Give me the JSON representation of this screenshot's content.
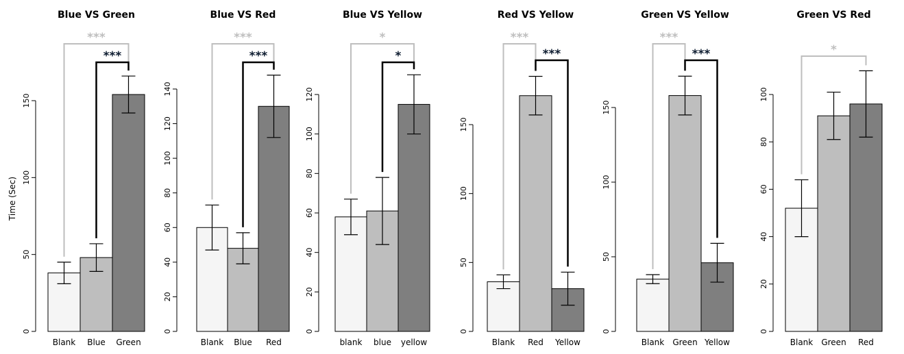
{
  "colors": {
    "bar_light": "#f5f5f5",
    "bar_mid": "#bebebe",
    "bar_dark": "#7f7f7f",
    "sig_black": "#000000",
    "sig_gray": "#bebebe",
    "sig_star_dark": "#0b1a2e"
  },
  "chart_data": [
    {
      "type": "bar",
      "title": "Blue VS Green",
      "ylabel": "Time (Sec)",
      "categories": [
        "Blank",
        "Blue",
        "Green"
      ],
      "values": [
        38,
        48,
        154
      ],
      "errors": [
        7,
        9,
        12
      ],
      "ylim": [
        0,
        175
      ],
      "yticks": [
        0,
        50,
        100,
        150
      ],
      "significance": [
        {
          "from": 0,
          "to": 2,
          "label": "***",
          "color": "gray"
        },
        {
          "from": 1,
          "to": 2,
          "label": "***",
          "color": "black"
        }
      ]
    },
    {
      "type": "bar",
      "title": "Blue VS Red",
      "categories": [
        "Blank",
        "Blue",
        "Red"
      ],
      "values": [
        60,
        48,
        130
      ],
      "errors": [
        13,
        9,
        18
      ],
      "ylim": [
        0,
        154
      ],
      "yticks": [
        0,
        20,
        40,
        60,
        80,
        100,
        120,
        140
      ],
      "significance": [
        {
          "from": 0,
          "to": 2,
          "label": "***",
          "color": "gray"
        },
        {
          "from": 1,
          "to": 2,
          "label": "***",
          "color": "black"
        }
      ]
    },
    {
      "type": "bar",
      "title": "Blue VS Yellow",
      "categories": [
        "blank",
        "blue",
        "yellow"
      ],
      "values": [
        58,
        61,
        115
      ],
      "errors": [
        9,
        17,
        15
      ],
      "ylim": [
        0,
        134
      ],
      "yticks": [
        0,
        20,
        40,
        60,
        80,
        100,
        120
      ],
      "significance": [
        {
          "from": 0,
          "to": 2,
          "label": "*",
          "color": "gray"
        },
        {
          "from": 1,
          "to": 2,
          "label": "*",
          "color": "black"
        }
      ]
    },
    {
      "type": "bar",
      "title": "Red VS Yellow",
      "categories": [
        "Blank",
        "Red",
        "Yellow"
      ],
      "values": [
        36,
        171,
        31
      ],
      "errors": [
        5,
        14,
        12
      ],
      "ylim": [
        0,
        198
      ],
      "yticks": [
        0,
        50,
        100,
        150
      ],
      "significance": [
        {
          "from": 0,
          "to": 1,
          "label": "***",
          "color": "gray"
        },
        {
          "from": 1,
          "to": 2,
          "label": "***",
          "color": "black"
        }
      ]
    },
    {
      "type": "bar",
      "title": "Green VS Yellow",
      "categories": [
        "Blank",
        "Green",
        "Yellow"
      ],
      "values": [
        35,
        158,
        46
      ],
      "errors": [
        3,
        13,
        13
      ],
      "ylim": [
        0,
        187
      ],
      "yticks": [
        0,
        50,
        100,
        150
      ],
      "significance": [
        {
          "from": 0,
          "to": 1,
          "label": "***",
          "color": "gray"
        },
        {
          "from": 1,
          "to": 2,
          "label": "***",
          "color": "black"
        }
      ]
    },
    {
      "type": "bar",
      "title": "Green VS Red",
      "categories": [
        "Blank",
        "Green",
        "Red"
      ],
      "values": [
        52,
        91,
        96
      ],
      "errors": [
        12,
        10,
        14
      ],
      "ylim": [
        0,
        122
      ],
      "yticks": [
        0,
        20,
        40,
        60,
        80,
        100
      ],
      "significance": [
        {
          "from": 0,
          "to": 2,
          "label": "*",
          "color": "gray"
        }
      ]
    }
  ]
}
